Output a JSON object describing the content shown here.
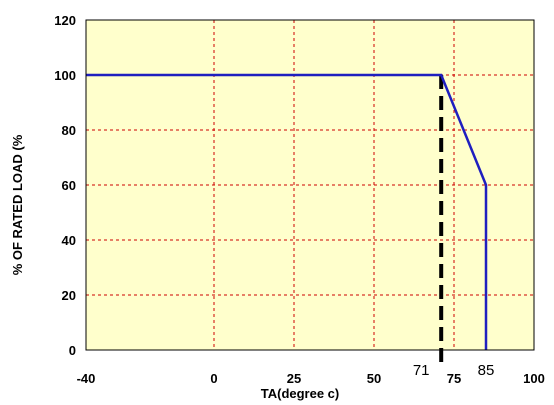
{
  "chart_data": {
    "type": "line",
    "title": "",
    "xlabel": "TA(degree c)",
    "ylabel": "% OF RATED LOAD (%",
    "xticks": [
      "-40",
      "0",
      "25",
      "50",
      "75",
      "100"
    ],
    "yticks": [
      "0",
      "20",
      "40",
      "60",
      "80",
      "100",
      "120"
    ],
    "xlim": [
      -40,
      100
    ],
    "ylim": [
      0,
      120
    ],
    "grid": true,
    "plot_background": "#ffffcc",
    "grid_color": "#cc0000",
    "series": [
      {
        "color": "#1f1fbf",
        "x": [
          -40,
          71,
          85,
          85
        ],
        "y": [
          100,
          100,
          60,
          0
        ]
      }
    ],
    "reference_line": {
      "x": 71,
      "style": "dashed",
      "color": "#000000"
    },
    "annotations": [
      {
        "text": "71",
        "x": 71
      },
      {
        "text": "85",
        "x": 85
      }
    ]
  }
}
